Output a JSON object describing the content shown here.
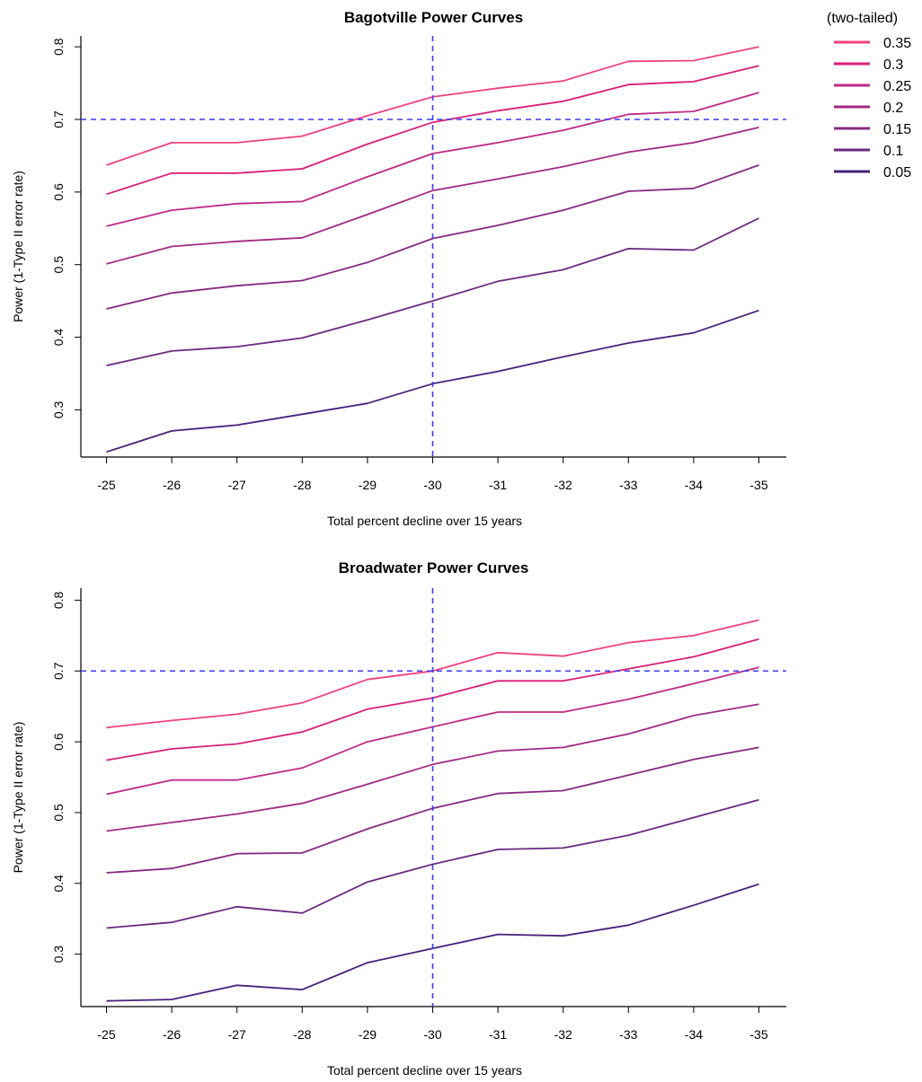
{
  "legend": {
    "title": "(two-tailed)",
    "entries": [
      "0.35",
      "0.3",
      "0.25",
      "0.2",
      "0.15",
      "0.1",
      "0.05"
    ]
  },
  "colors": {
    "0.35": "#f0417f",
    "0.3": "#d91e78",
    "0.25": "#bf2a86",
    "0.2": "#a22a84",
    "0.15": "#862a82",
    "0.1": "#6a2a80",
    "0.05": "#46227a",
    "reference": "#3b3bf0"
  },
  "chart_data": [
    {
      "type": "line",
      "title": "Bagotville Power Curves",
      "xlabel": "Total percent decline over 15 years",
      "ylabel": "Power (1-Type II error rate)",
      "categories": [
        "-25",
        "-26",
        "-27",
        "-28",
        "-29",
        "-30",
        "-31",
        "-32",
        "-33",
        "-34",
        "-35"
      ],
      "yticks": [
        "0.3",
        "0.4",
        "0.5",
        "0.6",
        "0.7",
        "0.8"
      ],
      "ylim": [
        0.235,
        0.815
      ],
      "grid": false,
      "legend_position": "right",
      "reference_lines": {
        "vertical_x": "-30",
        "horizontal_y": 0.7
      },
      "series": [
        {
          "name": "0.35",
          "values": [
            0.637,
            0.668,
            0.668,
            0.677,
            0.705,
            0.731,
            0.743,
            0.753,
            0.78,
            0.781,
            0.8
          ]
        },
        {
          "name": "0.3",
          "values": [
            0.597,
            0.626,
            0.626,
            0.632,
            0.666,
            0.696,
            0.712,
            0.725,
            0.748,
            0.752,
            0.774
          ]
        },
        {
          "name": "0.25",
          "values": [
            0.553,
            0.575,
            0.584,
            0.587,
            0.621,
            0.653,
            0.668,
            0.685,
            0.707,
            0.711,
            0.737
          ]
        },
        {
          "name": "0.2",
          "values": [
            0.501,
            0.525,
            0.532,
            0.537,
            0.569,
            0.602,
            0.618,
            0.635,
            0.655,
            0.668,
            0.689
          ]
        },
        {
          "name": "0.15",
          "values": [
            0.439,
            0.461,
            0.471,
            0.478,
            0.503,
            0.536,
            0.554,
            0.575,
            0.601,
            0.605,
            0.637
          ]
        },
        {
          "name": "0.1",
          "values": [
            0.361,
            0.381,
            0.387,
            0.399,
            0.424,
            0.45,
            0.477,
            0.493,
            0.522,
            0.52,
            0.564
          ]
        },
        {
          "name": "0.05",
          "values": [
            0.242,
            0.271,
            0.279,
            0.294,
            0.309,
            0.336,
            0.353,
            0.373,
            0.392,
            0.406,
            0.437
          ]
        }
      ]
    },
    {
      "type": "line",
      "title": "Broadwater Power Curves",
      "xlabel": "Total percent decline over 15 years",
      "ylabel": "Power (1-Type II error rate)",
      "categories": [
        "-25",
        "-26",
        "-27",
        "-28",
        "-29",
        "-30",
        "-31",
        "-32",
        "-33",
        "-34",
        "-35"
      ],
      "yticks": [
        "0.3",
        "0.4",
        "0.5",
        "0.6",
        "0.7",
        "0.8"
      ],
      "ylim": [
        0.226,
        0.817
      ],
      "grid": false,
      "reference_lines": {
        "vertical_x": "-30",
        "horizontal_y": 0.7
      },
      "series": [
        {
          "name": "0.35",
          "values": [
            0.62,
            0.63,
            0.639,
            0.655,
            0.688,
            0.7,
            0.726,
            0.721,
            0.74,
            0.75,
            0.772
          ]
        },
        {
          "name": "0.3",
          "values": [
            0.574,
            0.59,
            0.597,
            0.614,
            0.646,
            0.662,
            0.686,
            0.686,
            0.703,
            0.72,
            0.745
          ]
        },
        {
          "name": "0.25",
          "values": [
            0.526,
            0.546,
            0.546,
            0.563,
            0.6,
            0.621,
            0.642,
            0.642,
            0.66,
            0.682,
            0.705
          ]
        },
        {
          "name": "0.2",
          "values": [
            0.474,
            0.486,
            0.498,
            0.513,
            0.54,
            0.568,
            0.587,
            0.592,
            0.611,
            0.637,
            0.653
          ]
        },
        {
          "name": "0.15",
          "values": [
            0.415,
            0.421,
            0.442,
            0.443,
            0.477,
            0.506,
            0.527,
            0.531,
            0.553,
            0.575,
            0.592
          ]
        },
        {
          "name": "0.1",
          "values": [
            0.337,
            0.345,
            0.367,
            0.358,
            0.402,
            0.427,
            0.448,
            0.45,
            0.468,
            0.493,
            0.518
          ]
        },
        {
          "name": "0.05",
          "values": [
            0.234,
            0.236,
            0.256,
            0.25,
            0.288,
            0.308,
            0.328,
            0.326,
            0.341,
            0.369,
            0.399
          ]
        }
      ]
    }
  ]
}
